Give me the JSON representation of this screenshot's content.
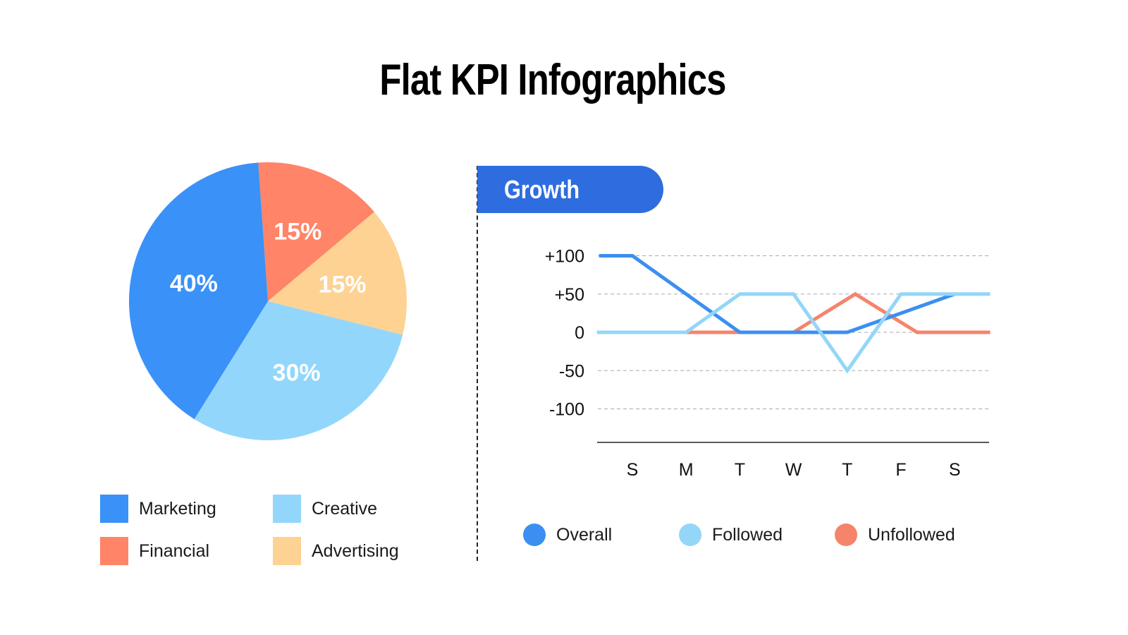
{
  "title": "Flat KPI Infographics",
  "chart_data": [
    {
      "type": "pie",
      "categories": [
        "Financial",
        "Advertising",
        "Creative",
        "Marketing"
      ],
      "values": [
        15,
        15,
        30,
        40
      ],
      "labels": [
        "15%",
        "15%",
        "30%",
        "40%"
      ],
      "colors": [
        "#ff8468",
        "#fdd293",
        "#92d7fb",
        "#3a91f8"
      ],
      "legend": [
        {
          "name": "Marketing",
          "color": "#3a91f8"
        },
        {
          "name": "Creative",
          "color": "#92d7fb"
        },
        {
          "name": "Financial",
          "color": "#ff8468"
        },
        {
          "name": "Advertising",
          "color": "#fdd293"
        }
      ],
      "legend_position": "bottom"
    },
    {
      "type": "line",
      "title": "Growth",
      "categories": [
        "S",
        "M",
        "T",
        "W",
        "T",
        "F",
        "S"
      ],
      "yticks": [
        "+100",
        "+50",
        "0",
        "-50",
        "-100"
      ],
      "ytick_values": [
        100,
        50,
        0,
        -50,
        -100
      ],
      "ylim": [
        -100,
        100
      ],
      "grid": "horizontal dashed",
      "legend_position": "bottom",
      "series": [
        {
          "name": "Overall",
          "color": "#3b8ff0",
          "x": [
            -0.62,
            0,
            2,
            4,
            6
          ],
          "y": [
            100,
            100,
            0,
            0,
            50
          ]
        },
        {
          "name": "Followed",
          "color": "#93d6f8",
          "x": [
            -0.66,
            1,
            2,
            3,
            4,
            5,
            6.66
          ],
          "y": [
            0,
            0,
            50,
            50,
            -50,
            50,
            50
          ]
        },
        {
          "name": "Unfollowed",
          "color": "#f5846b",
          "x": [
            1,
            2,
            3,
            4.15,
            5.3,
            6.66
          ],
          "y": [
            0,
            0,
            0,
            50,
            0,
            0
          ]
        }
      ]
    }
  ]
}
